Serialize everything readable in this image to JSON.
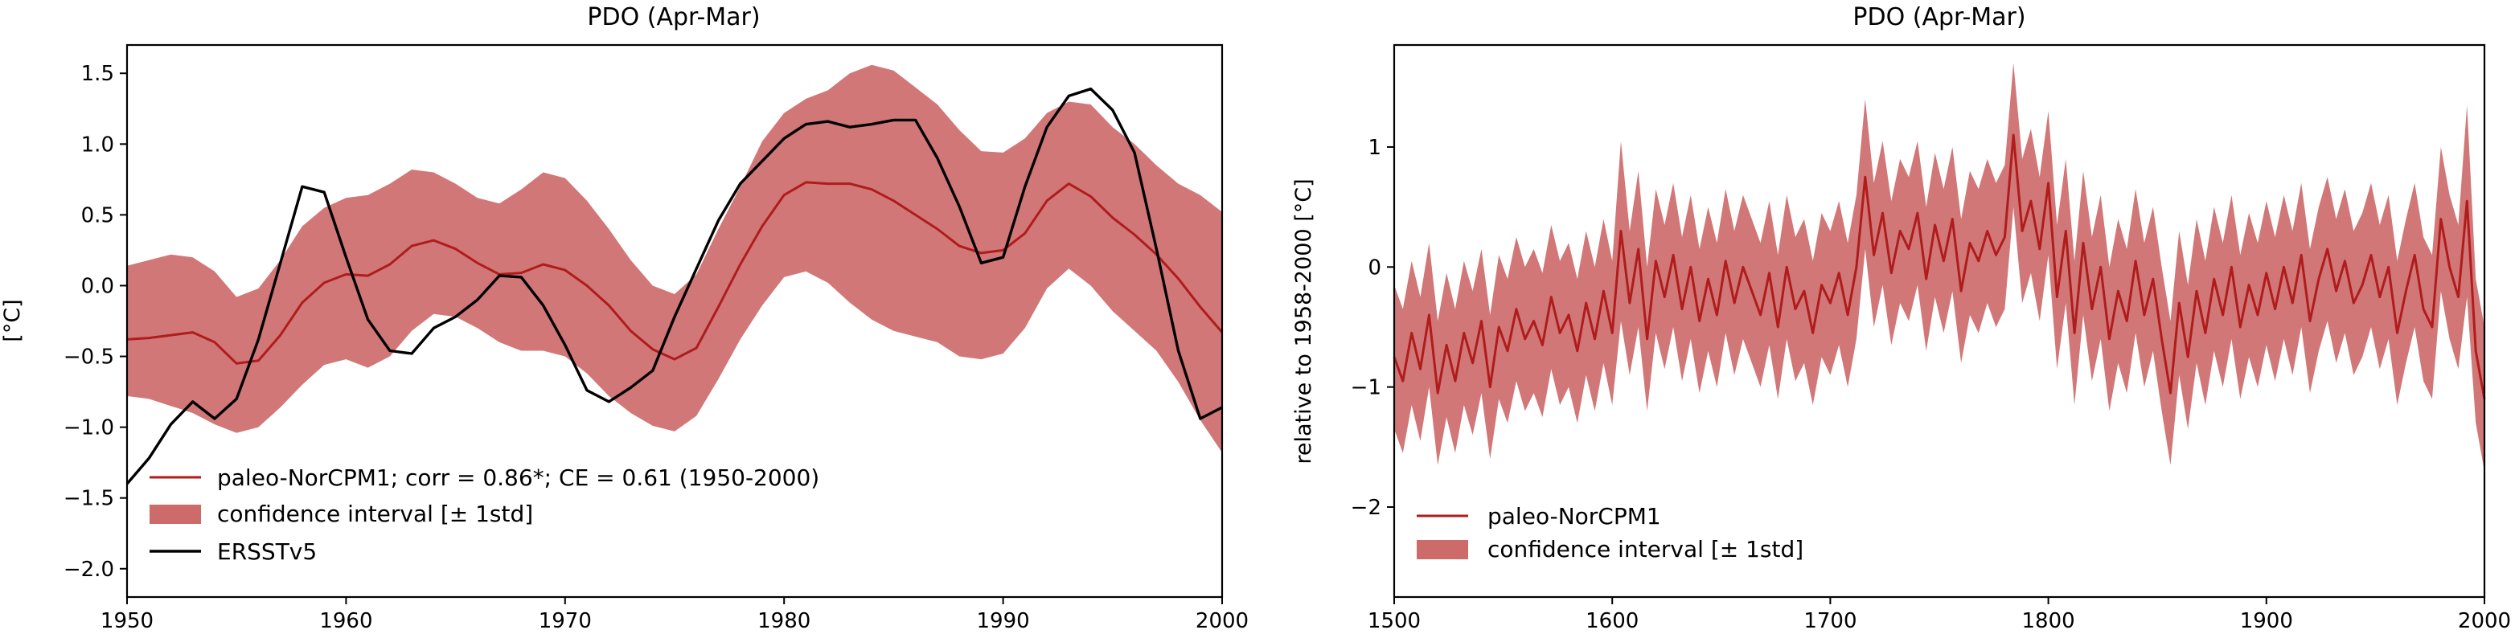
{
  "chart_data": [
    {
      "type": "line",
      "title": "PDO (Apr-Mar)",
      "xlabel": "",
      "ylabel": "[°C]",
      "xlim": [
        1950,
        2000
      ],
      "ylim": [
        -2.2,
        1.7
      ],
      "xticks": [
        1950,
        1960,
        1970,
        1980,
        1990,
        2000
      ],
      "yticks": [
        -2.0,
        -1.5,
        -1.0,
        -0.5,
        0.0,
        0.5,
        1.0,
        1.5
      ],
      "ytick_labels": [
        "−2.0",
        "−1.5",
        "−1.0",
        "−0.5",
        "0.0",
        "0.5",
        "1.0",
        "1.5"
      ],
      "grid": false,
      "legend_position": "lower-left",
      "x": [
        1950,
        1951,
        1952,
        1953,
        1954,
        1955,
        1956,
        1957,
        1958,
        1959,
        1960,
        1961,
        1962,
        1963,
        1964,
        1965,
        1966,
        1967,
        1968,
        1969,
        1970,
        1971,
        1972,
        1973,
        1974,
        1975,
        1976,
        1977,
        1978,
        1979,
        1980,
        1981,
        1982,
        1983,
        1984,
        1985,
        1986,
        1987,
        1988,
        1989,
        1990,
        1991,
        1992,
        1993,
        1994,
        1995,
        1996,
        1997,
        1998,
        1999,
        2000
      ],
      "series": [
        {
          "name": "paleo-NorCPM1; corr = 0.86*; CE = 0.61 (1950-2000)",
          "color": "#b01c1c",
          "values": [
            -0.38,
            -0.37,
            -0.35,
            -0.33,
            -0.4,
            -0.55,
            -0.53,
            -0.35,
            -0.12,
            0.02,
            0.08,
            0.07,
            0.15,
            0.28,
            0.32,
            0.26,
            0.16,
            0.08,
            0.09,
            0.15,
            0.11,
            0.0,
            -0.14,
            -0.32,
            -0.45,
            -0.52,
            -0.44,
            -0.15,
            0.15,
            0.42,
            0.64,
            0.73,
            0.72,
            0.72,
            0.68,
            0.6,
            0.5,
            0.4,
            0.28,
            0.23,
            0.25,
            0.37,
            0.6,
            0.72,
            0.63,
            0.48,
            0.36,
            0.22,
            0.05,
            -0.15,
            -0.33
          ]
        },
        {
          "name": "confidence interval [± 1std]",
          "color": "#cd6b6b",
          "band_upper": [
            0.14,
            0.18,
            0.22,
            0.2,
            0.1,
            -0.08,
            -0.02,
            0.18,
            0.42,
            0.55,
            0.62,
            0.64,
            0.72,
            0.82,
            0.8,
            0.72,
            0.62,
            0.58,
            0.68,
            0.8,
            0.76,
            0.6,
            0.4,
            0.18,
            0.0,
            -0.06,
            0.08,
            0.4,
            0.7,
            1.02,
            1.22,
            1.32,
            1.38,
            1.5,
            1.56,
            1.52,
            1.4,
            1.28,
            1.1,
            0.95,
            0.94,
            1.04,
            1.22,
            1.3,
            1.28,
            1.12,
            1.0,
            0.85,
            0.72,
            0.64,
            0.52
          ],
          "band_lower": [
            -0.78,
            -0.8,
            -0.85,
            -0.9,
            -0.98,
            -1.04,
            -1.0,
            -0.86,
            -0.7,
            -0.56,
            -0.52,
            -0.58,
            -0.5,
            -0.32,
            -0.2,
            -0.22,
            -0.3,
            -0.4,
            -0.46,
            -0.46,
            -0.5,
            -0.62,
            -0.78,
            -0.9,
            -0.99,
            -1.03,
            -0.92,
            -0.66,
            -0.38,
            -0.14,
            0.06,
            0.1,
            0.02,
            -0.12,
            -0.24,
            -0.32,
            -0.36,
            -0.4,
            -0.5,
            -0.52,
            -0.48,
            -0.3,
            -0.02,
            0.12,
            0.0,
            -0.18,
            -0.32,
            -0.46,
            -0.68,
            -0.95,
            -1.18
          ]
        },
        {
          "name": "ERSSTv5",
          "color": "#000000",
          "values": [
            -1.4,
            -1.22,
            -0.98,
            -0.82,
            -0.94,
            -0.8,
            -0.38,
            0.16,
            0.7,
            0.66,
            0.2,
            -0.24,
            -0.46,
            -0.48,
            -0.3,
            -0.22,
            -0.1,
            0.07,
            0.06,
            -0.14,
            -0.42,
            -0.74,
            -0.82,
            -0.72,
            -0.6,
            -0.22,
            0.12,
            0.46,
            0.72,
            0.88,
            1.04,
            1.14,
            1.16,
            1.12,
            1.14,
            1.17,
            1.17,
            0.9,
            0.56,
            0.16,
            0.2,
            0.7,
            1.12,
            1.34,
            1.39,
            1.24,
            0.94,
            0.26,
            -0.46,
            -0.94,
            -0.86
          ]
        }
      ]
    },
    {
      "type": "line",
      "title": "PDO (Apr-Mar)",
      "xlabel": "",
      "ylabel": "relative to 1958-2000 [°C]",
      "xlim": [
        1500,
        2000
      ],
      "ylim": [
        -2.75,
        1.85
      ],
      "xticks": [
        1500,
        1600,
        1700,
        1800,
        1900,
        2000
      ],
      "yticks": [
        -2,
        -1,
        0,
        1
      ],
      "ytick_labels": [
        "−2",
        "−1",
        "0",
        "1"
      ],
      "grid": false,
      "legend_position": "lower-left",
      "x": [
        1500,
        1504,
        1508,
        1512,
        1516,
        1520,
        1524,
        1528,
        1532,
        1536,
        1540,
        1544,
        1548,
        1552,
        1556,
        1560,
        1564,
        1568,
        1572,
        1576,
        1580,
        1584,
        1588,
        1592,
        1596,
        1600,
        1604,
        1608,
        1612,
        1616,
        1620,
        1624,
        1628,
        1632,
        1636,
        1640,
        1644,
        1648,
        1652,
        1656,
        1660,
        1664,
        1668,
        1672,
        1676,
        1680,
        1684,
        1688,
        1692,
        1696,
        1700,
        1704,
        1708,
        1712,
        1716,
        1720,
        1724,
        1728,
        1732,
        1736,
        1740,
        1744,
        1748,
        1752,
        1756,
        1760,
        1764,
        1768,
        1772,
        1776,
        1780,
        1784,
        1788,
        1792,
        1796,
        1800,
        1804,
        1808,
        1812,
        1816,
        1820,
        1824,
        1828,
        1832,
        1836,
        1840,
        1844,
        1848,
        1852,
        1856,
        1860,
        1864,
        1868,
        1872,
        1876,
        1880,
        1884,
        1888,
        1892,
        1896,
        1900,
        1904,
        1908,
        1912,
        1916,
        1920,
        1924,
        1928,
        1932,
        1936,
        1940,
        1944,
        1948,
        1952,
        1956,
        1960,
        1964,
        1968,
        1972,
        1976,
        1980,
        1984,
        1988,
        1992,
        1996,
        2000
      ],
      "series": [
        {
          "name": "paleo-NorCPM1",
          "color": "#b01c1c",
          "values": [
            -0.75,
            -0.95,
            -0.55,
            -0.85,
            -0.4,
            -1.05,
            -0.65,
            -0.95,
            -0.55,
            -0.8,
            -0.45,
            -1.0,
            -0.5,
            -0.7,
            -0.35,
            -0.6,
            -0.45,
            -0.65,
            -0.25,
            -0.55,
            -0.4,
            -0.7,
            -0.3,
            -0.6,
            -0.2,
            -0.55,
            0.3,
            -0.3,
            0.15,
            -0.6,
            0.05,
            -0.25,
            0.1,
            -0.35,
            0.0,
            -0.45,
            -0.1,
            -0.4,
            0.05,
            -0.3,
            0.0,
            -0.2,
            -0.4,
            -0.05,
            -0.5,
            0.0,
            -0.35,
            -0.2,
            -0.55,
            -0.15,
            -0.3,
            -0.05,
            -0.4,
            0.0,
            0.75,
            0.1,
            0.45,
            -0.05,
            0.3,
            0.15,
            0.45,
            -0.1,
            0.35,
            0.05,
            0.4,
            -0.2,
            0.2,
            0.05,
            0.3,
            0.1,
            0.25,
            1.1,
            0.3,
            0.55,
            0.15,
            0.7,
            -0.25,
            0.3,
            -0.55,
            0.2,
            -0.35,
            0.0,
            -0.6,
            -0.2,
            -0.45,
            0.05,
            -0.4,
            -0.1,
            -0.6,
            -1.05,
            -0.3,
            -0.75,
            -0.2,
            -0.55,
            -0.1,
            -0.4,
            0.0,
            -0.5,
            -0.15,
            -0.4,
            -0.05,
            -0.35,
            0.0,
            -0.3,
            0.1,
            -0.45,
            -0.1,
            0.15,
            -0.2,
            0.05,
            -0.3,
            -0.15,
            0.1,
            -0.25,
            0.0,
            -0.55,
            -0.2,
            0.1,
            -0.35,
            -0.5,
            0.4,
            0.0,
            -0.25,
            0.55,
            -0.7,
            -1.1
          ]
        },
        {
          "name": "confidence interval [± 1std]",
          "color": "#cd6b6b",
          "band_upper": [
            -0.15,
            -0.35,
            0.05,
            -0.25,
            0.2,
            -0.45,
            -0.05,
            -0.35,
            0.05,
            -0.2,
            0.15,
            -0.4,
            0.1,
            -0.1,
            0.25,
            0.0,
            0.15,
            -0.05,
            0.35,
            0.05,
            0.2,
            -0.1,
            0.3,
            0.0,
            0.4,
            0.05,
            1.05,
            0.3,
            0.8,
            0.0,
            0.65,
            0.35,
            0.7,
            0.25,
            0.6,
            0.15,
            0.5,
            0.2,
            0.65,
            0.3,
            0.6,
            0.4,
            0.2,
            0.55,
            0.1,
            0.6,
            0.25,
            0.4,
            0.05,
            0.45,
            0.3,
            0.55,
            0.2,
            0.6,
            1.4,
            0.7,
            1.05,
            0.55,
            0.9,
            0.75,
            1.05,
            0.5,
            0.95,
            0.65,
            1.0,
            0.4,
            0.8,
            0.65,
            0.9,
            0.7,
            0.85,
            1.7,
            0.9,
            1.15,
            0.75,
            1.3,
            0.35,
            0.9,
            0.05,
            0.8,
            0.25,
            0.6,
            0.0,
            0.4,
            0.15,
            0.65,
            0.2,
            0.5,
            0.0,
            -0.45,
            0.3,
            -0.15,
            0.4,
            0.05,
            0.5,
            0.2,
            0.6,
            0.1,
            0.45,
            0.2,
            0.55,
            0.25,
            0.6,
            0.3,
            0.7,
            0.15,
            0.5,
            0.75,
            0.4,
            0.65,
            0.3,
            0.45,
            0.7,
            0.35,
            0.6,
            0.05,
            0.4,
            0.7,
            0.25,
            0.1,
            1.0,
            0.6,
            0.35,
            1.35,
            -0.1,
            -0.5
          ],
          "band_lower": [
            -1.35,
            -1.55,
            -1.15,
            -1.45,
            -1.0,
            -1.65,
            -1.25,
            -1.55,
            -1.15,
            -1.4,
            -1.05,
            -1.6,
            -1.1,
            -1.3,
            -0.95,
            -1.2,
            -1.05,
            -1.25,
            -0.85,
            -1.15,
            -1.0,
            -1.3,
            -0.9,
            -1.2,
            -0.8,
            -1.15,
            -0.45,
            -0.9,
            -0.5,
            -1.2,
            -0.55,
            -0.85,
            -0.5,
            -0.95,
            -0.6,
            -1.05,
            -0.7,
            -1.0,
            -0.55,
            -0.9,
            -0.6,
            -0.8,
            -1.0,
            -0.65,
            -1.1,
            -0.6,
            -0.95,
            -0.8,
            -1.15,
            -0.75,
            -0.9,
            -0.65,
            -1.0,
            -0.6,
            0.15,
            -0.5,
            -0.15,
            -0.65,
            -0.3,
            -0.45,
            -0.15,
            -0.7,
            -0.25,
            -0.55,
            -0.2,
            -0.8,
            -0.4,
            -0.55,
            -0.3,
            -0.5,
            -0.35,
            0.5,
            -0.3,
            -0.05,
            -0.45,
            0.1,
            -0.85,
            -0.3,
            -1.15,
            -0.4,
            -0.95,
            -0.6,
            -1.2,
            -0.8,
            -1.05,
            -0.55,
            -1.0,
            -0.7,
            -1.2,
            -1.65,
            -0.9,
            -1.35,
            -0.8,
            -1.15,
            -0.7,
            -1.0,
            -0.6,
            -1.1,
            -0.75,
            -1.0,
            -0.65,
            -0.95,
            -0.6,
            -0.9,
            -0.5,
            -1.05,
            -0.7,
            -0.45,
            -0.8,
            -0.55,
            -0.9,
            -0.75,
            -0.5,
            -0.85,
            -0.6,
            -1.15,
            -0.8,
            -0.5,
            -0.95,
            -1.1,
            -0.2,
            -0.6,
            -0.85,
            -0.25,
            -1.3,
            -1.7
          ]
        }
      ]
    }
  ]
}
